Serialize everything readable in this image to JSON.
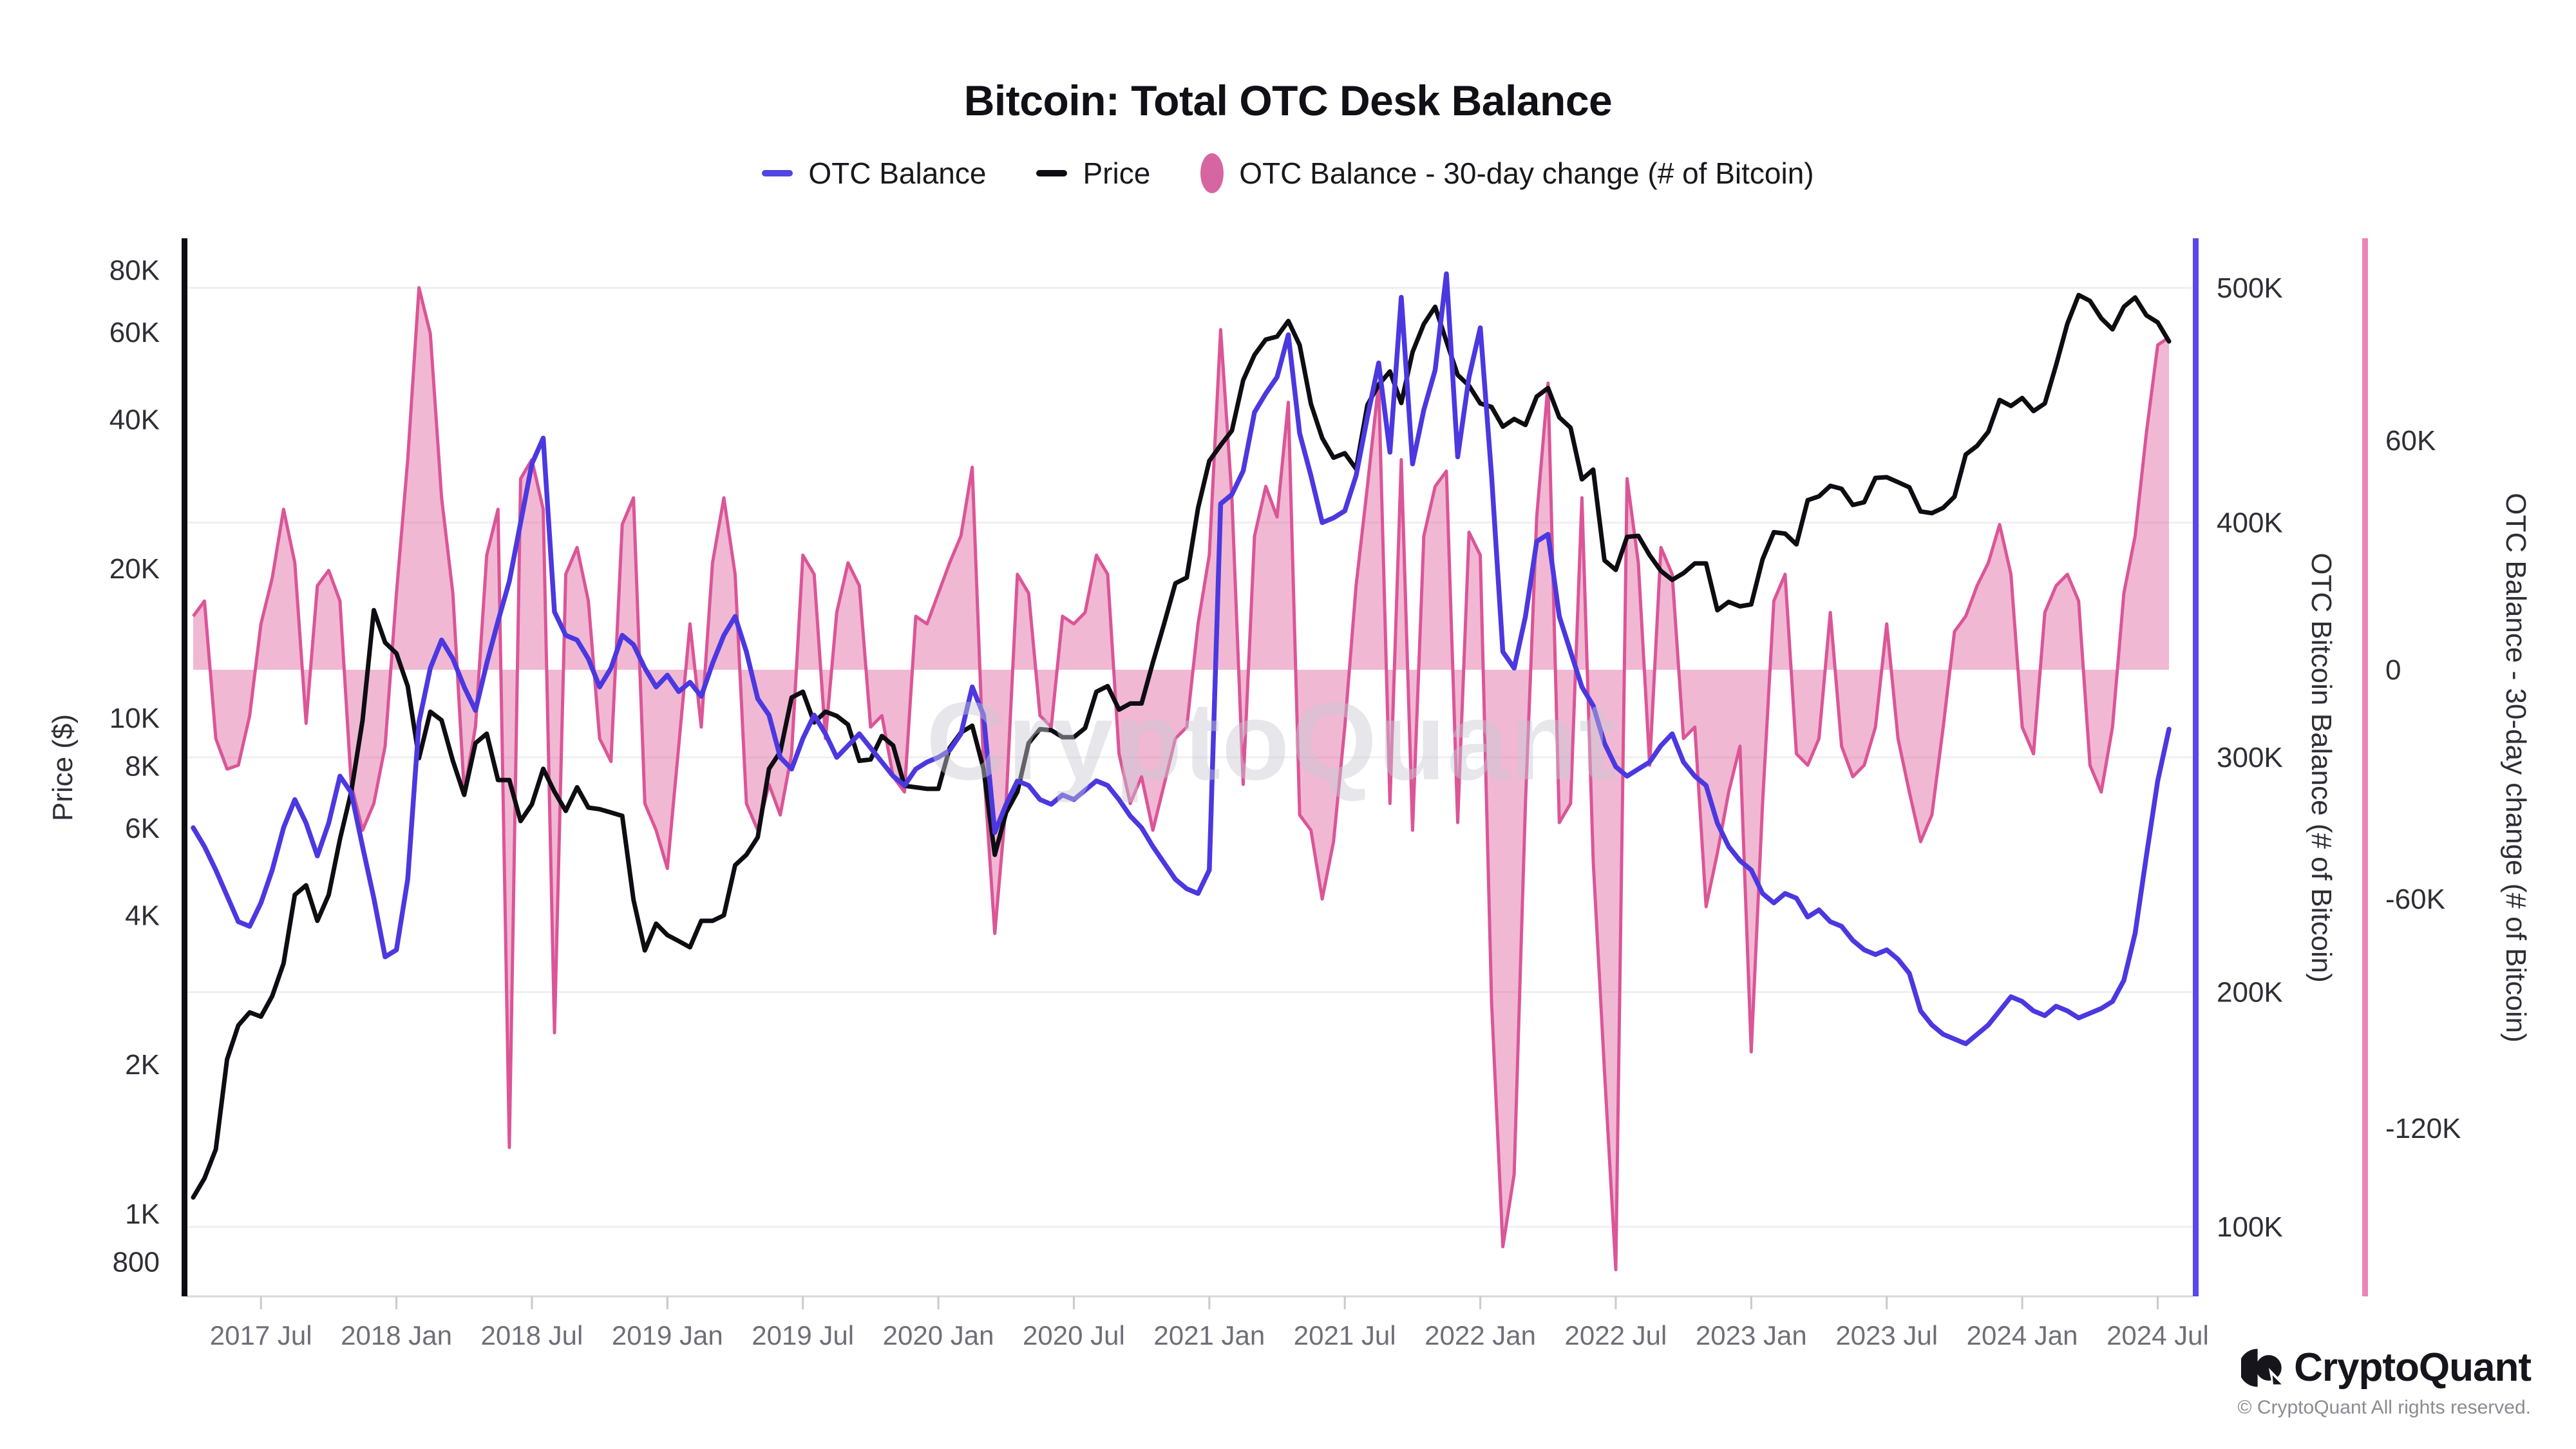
{
  "title": "Bitcoin: Total OTC Desk Balance",
  "legend": [
    {
      "label": "OTC Balance",
      "swatch": "blue-dash",
      "color": "#5044e2"
    },
    {
      "label": "Price",
      "swatch": "black-dash",
      "color": "#0d0d12"
    },
    {
      "label": "OTC Balance - 30-day change (# of Bitcoin)",
      "swatch": "pink-ellipse",
      "color": "#d666a1"
    }
  ],
  "watermark": "CryptoQuant",
  "footer": {
    "brand": "CryptoQuant",
    "copyright": "© CryptoQuant All rights reserved."
  },
  "chart_data": {
    "type": "line",
    "subtype": "two lines + one filled area, triple y-axes",
    "x_range": [
      "2017-04-01",
      "2024-07-08"
    ],
    "cadence": "semi-monthly samples (indices are half-months from 2017-04-01)",
    "x_ticks": {
      "labels": [
        "2017 Jul",
        "2018 Jan",
        "2018 Jul",
        "2019 Jan",
        "2019 Jul",
        "2020 Jan",
        "2020 Jul",
        "2021 Jan",
        "2021 Jul",
        "2022 Jan",
        "2022 Jul",
        "2023 Jan",
        "2023 Jul",
        "2024 Jan",
        "2024 Jul"
      ],
      "indices": [
        6,
        18,
        30,
        42,
        54,
        66,
        78,
        90,
        102,
        114,
        126,
        138,
        150,
        162,
        174
      ]
    },
    "axes": {
      "price": {
        "title": "Price ($)",
        "side": "left",
        "scale": "log",
        "tick_labels": [
          "800",
          "1K",
          "2K",
          "4K",
          "6K",
          "8K",
          "10K",
          "20K",
          "40K",
          "60K",
          "80K"
        ],
        "tick_values": [
          800,
          1000,
          2000,
          4000,
          6000,
          8000,
          10000,
          20000,
          40000,
          60000,
          80000
        ]
      },
      "balance": {
        "title": "OTC Bitcoin Balance (# of Bitcoin)",
        "side": "right-inner",
        "scale": "linear",
        "tick_labels": [
          "100K",
          "200K",
          "300K",
          "400K",
          "500K"
        ],
        "tick_values": [
          100,
          200,
          300,
          400,
          500
        ],
        "unit": "thousand BTC"
      },
      "change": {
        "title": "OTC Balance - 30-day change (# of Bitcoin)",
        "side": "right-outer",
        "scale": "linear",
        "tick_labels": [
          "60K",
          "0",
          "-60K",
          "-120K"
        ],
        "tick_values": [
          60,
          0,
          -60,
          -120
        ],
        "unit": "thousand BTC"
      }
    },
    "grid": "horizontal lines at balance ticks",
    "series": [
      {
        "name": "Price",
        "axis": "price",
        "kind": "line",
        "color": "#0d0d12",
        "values": [
          1080,
          1180,
          1350,
          2050,
          2400,
          2550,
          2500,
          2750,
          3200,
          4400,
          4600,
          3900,
          4400,
          5700,
          7100,
          9900,
          16500,
          14200,
          13500,
          11600,
          8300,
          10300,
          9900,
          8200,
          7000,
          8900,
          9300,
          7500,
          7500,
          6200,
          6700,
          7900,
          7100,
          6500,
          7250,
          6600,
          6550,
          6450,
          6350,
          4300,
          3400,
          3850,
          3650,
          3550,
          3450,
          3900,
          3900,
          4000,
          5050,
          5300,
          5750,
          7900,
          8550,
          11000,
          11300,
          9800,
          10300,
          10100,
          9700,
          8200,
          8250,
          9200,
          8800,
          7300,
          7250,
          7200,
          7200,
          8700,
          9350,
          9650,
          7900,
          5300,
          6450,
          7100,
          8900,
          9500,
          9450,
          9150,
          9150,
          9550,
          11300,
          11600,
          10400,
          10700,
          10700,
          12950,
          15500,
          18700,
          19200,
          26500,
          33000,
          35500,
          38000,
          48000,
          54000,
          58000,
          58800,
          63200,
          56500,
          43000,
          36700,
          33500,
          34200,
          31800,
          42800,
          47000,
          50000,
          43200,
          54700,
          62300,
          67500,
          57500,
          49200,
          46800,
          43100,
          42400,
          38700,
          40100,
          39000,
          44500,
          46300,
          40400,
          38500,
          30300,
          31700,
          20800,
          19900,
          23200,
          23300,
          21300,
          19800,
          19000,
          19600,
          20500,
          20500,
          16500,
          17150,
          16800,
          16950,
          20900,
          23700,
          23550,
          22400,
          27500,
          28000,
          29400,
          29000,
          26900,
          27250,
          30500,
          30600,
          29900,
          29200,
          26100,
          25900,
          26550,
          27950,
          34000,
          35400,
          37800,
          43800,
          42600,
          44200,
          41600,
          43100,
          51500,
          62400,
          71300,
          69400,
          64000,
          60800,
          67500,
          70500,
          64900,
          62800,
          57500
        ]
      },
      {
        "name": "OTC Balance",
        "axis": "balance",
        "kind": "line",
        "color": "#4b38e0",
        "values": [
          270,
          262,
          252,
          241,
          230,
          228,
          238,
          252,
          270,
          282,
          272,
          258,
          272,
          292,
          285,
          262,
          240,
          215,
          218,
          248,
          315,
          338,
          350,
          342,
          330,
          320,
          340,
          358,
          375,
          400,
          425,
          436,
          362,
          352,
          350,
          342,
          330,
          338,
          352,
          348,
          338,
          330,
          335,
          328,
          332,
          326,
          340,
          352,
          360,
          345,
          325,
          318,
          300,
          295,
          308,
          318,
          310,
          300,
          305,
          310,
          304,
          298,
          292,
          288,
          295,
          298,
          300,
          303,
          310,
          330,
          318,
          268,
          280,
          290,
          288,
          282,
          280,
          284,
          282,
          286,
          290,
          288,
          282,
          275,
          270,
          262,
          255,
          248,
          244,
          242,
          252,
          408,
          412,
          422,
          447,
          455,
          462,
          480,
          438,
          420,
          400,
          402,
          405,
          420,
          445,
          468,
          430,
          496,
          425,
          448,
          465,
          506,
          428,
          462,
          483,
          420,
          345,
          338,
          360,
          392,
          395,
          360,
          345,
          330,
          322,
          306,
          296,
          292,
          295,
          298,
          305,
          310,
          298,
          292,
          288,
          272,
          262,
          256,
          252,
          242,
          238,
          242,
          240,
          232,
          235,
          230,
          228,
          222,
          218,
          216,
          218,
          214,
          208,
          192,
          186,
          182,
          180,
          178,
          182,
          186,
          192,
          198,
          196,
          192,
          190,
          194,
          192,
          189,
          191,
          193,
          196,
          205,
          225,
          258,
          290,
          312
        ]
      },
      {
        "name": "OTC Balance - 30-day change (# of Bitcoin)",
        "axis": "change",
        "kind": "area",
        "stroke": "#db5597",
        "fill": "#db5597",
        "fill_opacity": 0.42,
        "values": [
          14,
          18,
          -18,
          -26,
          -25,
          -12,
          12,
          24,
          42,
          28,
          -14,
          22,
          26,
          18,
          -30,
          -42,
          -35,
          -20,
          20,
          55,
          100,
          88,
          45,
          20,
          -32,
          -15,
          30,
          42,
          -125,
          50,
          55,
          42,
          -95,
          25,
          32,
          18,
          -18,
          -24,
          38,
          45,
          -35,
          -42,
          -52,
          -20,
          12,
          -15,
          28,
          45,
          25,
          -35,
          -42,
          -30,
          -38,
          -22,
          30,
          25,
          -18,
          15,
          28,
          22,
          -15,
          -12,
          -28,
          -32,
          14,
          12,
          20,
          28,
          35,
          53,
          -25,
          -69,
          -35,
          25,
          20,
          -12,
          -15,
          14,
          12,
          15,
          30,
          25,
          -22,
          -35,
          -28,
          -42,
          -30,
          -18,
          -15,
          12,
          30,
          89,
          45,
          -30,
          35,
          48,
          40,
          70,
          -38,
          -42,
          -60,
          -45,
          -15,
          22,
          48,
          75,
          -35,
          55,
          -42,
          35,
          48,
          52,
          -40,
          36,
          30,
          -87,
          -151,
          -132,
          -35,
          40,
          75,
          -40,
          -35,
          45,
          -50,
          -105,
          -157,
          50,
          28,
          -25,
          32,
          25,
          -18,
          -15,
          -62,
          -48,
          -32,
          -20,
          -100,
          -35,
          18,
          25,
          -22,
          -25,
          -18,
          15,
          -20,
          -28,
          -25,
          -15,
          12,
          -18,
          -32,
          -45,
          -38,
          -15,
          10,
          14,
          22,
          28,
          38,
          25,
          -15,
          -22,
          15,
          22,
          25,
          18,
          -25,
          -32,
          -15,
          20,
          35,
          62,
          85,
          87
        ]
      }
    ]
  }
}
